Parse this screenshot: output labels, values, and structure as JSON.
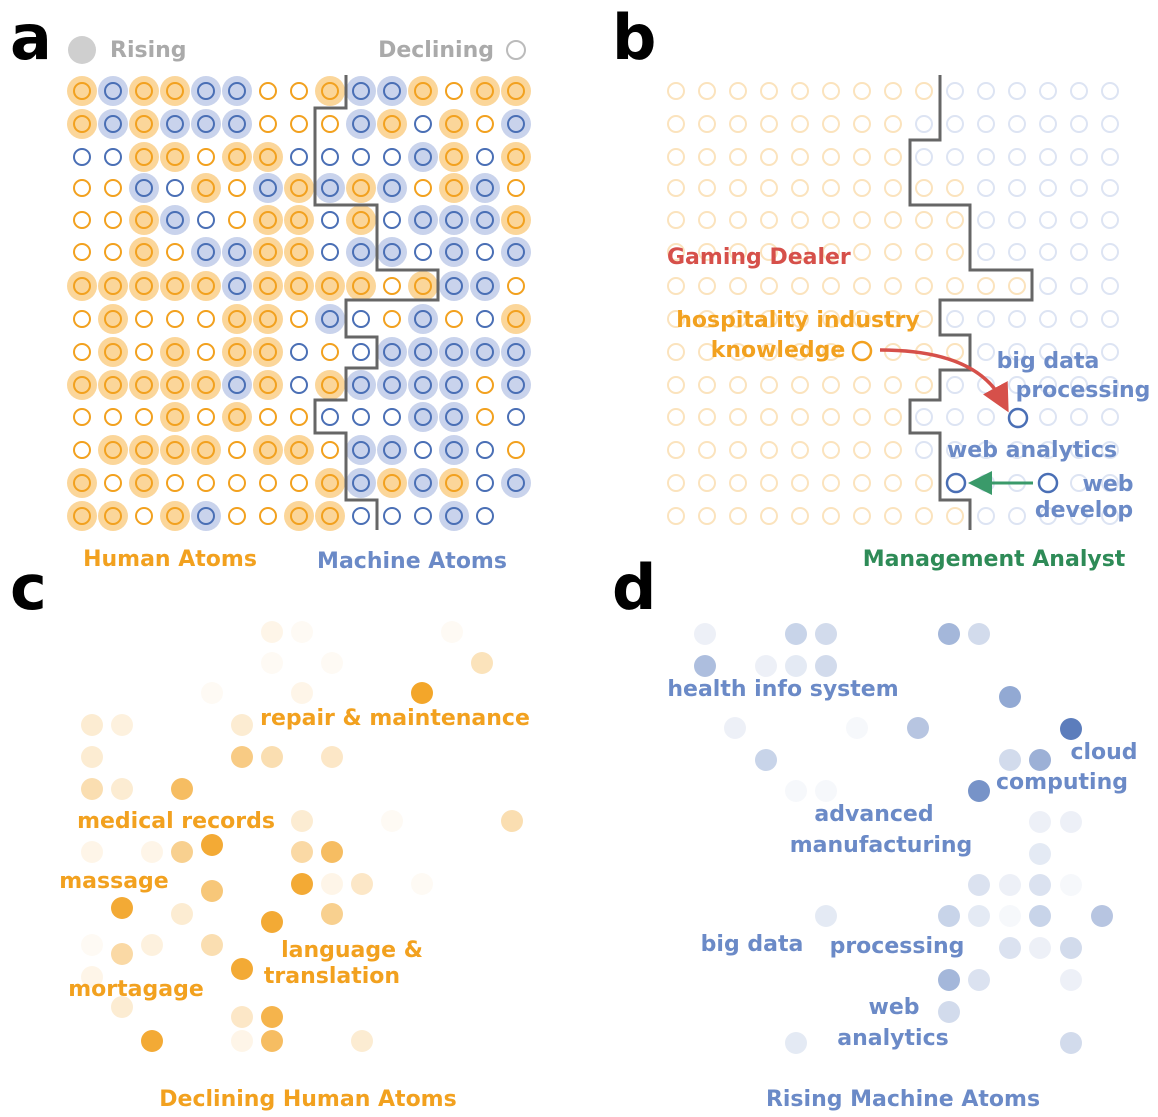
{
  "panel_a": {
    "letter": "a",
    "legend_rising": "Rising",
    "legend_declining": "Declining",
    "label_human": "Human Atoms",
    "label_machine": "Machine Atoms"
  },
  "panel_b": {
    "letter": "b",
    "title_top": "Gaming Dealer",
    "label_hospitality_1": "hospitality industry",
    "label_hospitality_2": "knowledge",
    "label_bigdata_1": "big data",
    "label_bigdata_2": "processing",
    "label_webanalytics": "web analytics",
    "label_webdev_1": "web",
    "label_webdev_2": "develop",
    "title_bottom": "Management Analyst"
  },
  "panel_c": {
    "letter": "c",
    "labels": [
      "repair & maintenance",
      "medical records",
      "massage",
      "language &",
      "translation",
      "mortagage"
    ],
    "caption": "Declining Human Atoms"
  },
  "panel_d": {
    "letter": "d",
    "labels": [
      "health info system",
      "cloud",
      "computing",
      "advanced",
      "manufacturing",
      "big data",
      "processing",
      "web",
      "analytics"
    ],
    "caption": "Rising Machine Atoms"
  }
}
